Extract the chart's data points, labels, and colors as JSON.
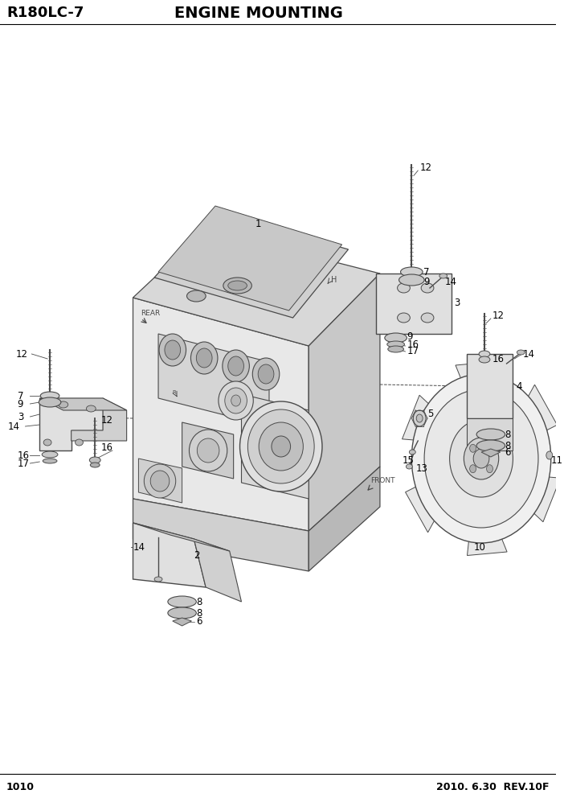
{
  "title_left": "R180LC-7",
  "title_center": "ENGINE MOUNTING",
  "page_num": "1010",
  "footer_right": "2010. 6.30  REV.10F",
  "bg_color": "#ffffff",
  "line_color": "#4a4a4a",
  "text_color": "#000000",
  "title_fontsize": 13,
  "label_fontsize": 8.5,
  "footer_fontsize": 9,
  "figsize": [
    7.02,
    9.92
  ],
  "dpi": 100
}
